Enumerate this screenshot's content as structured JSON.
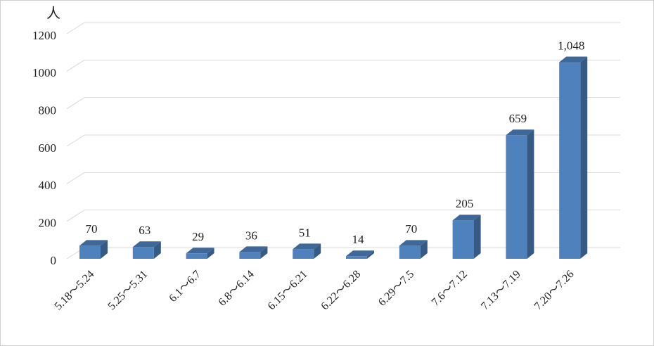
{
  "chart_data": {
    "type": "bar3d",
    "y_label": "人",
    "categories": [
      "5.18～5.24",
      "5.25～5.31",
      "6.1～6.7",
      "6.8～6.14",
      "6.15～6.21",
      "6.22～6.28",
      "6.29～7.5",
      "7.6～7.12",
      "7.13～7.19",
      "7.20～7.26"
    ],
    "values": [
      70,
      63,
      29,
      36,
      51,
      14,
      70,
      205,
      659,
      1048
    ],
    "value_labels": [
      "70",
      "63",
      "29",
      "36",
      "51",
      "14",
      "70",
      "205",
      "659",
      "1,048"
    ],
    "color": "#4f81bd",
    "ylim": [
      0,
      1200
    ],
    "yticks": [
      0,
      200,
      400,
      600,
      800,
      1000,
      1200
    ],
    "grid": true
  }
}
